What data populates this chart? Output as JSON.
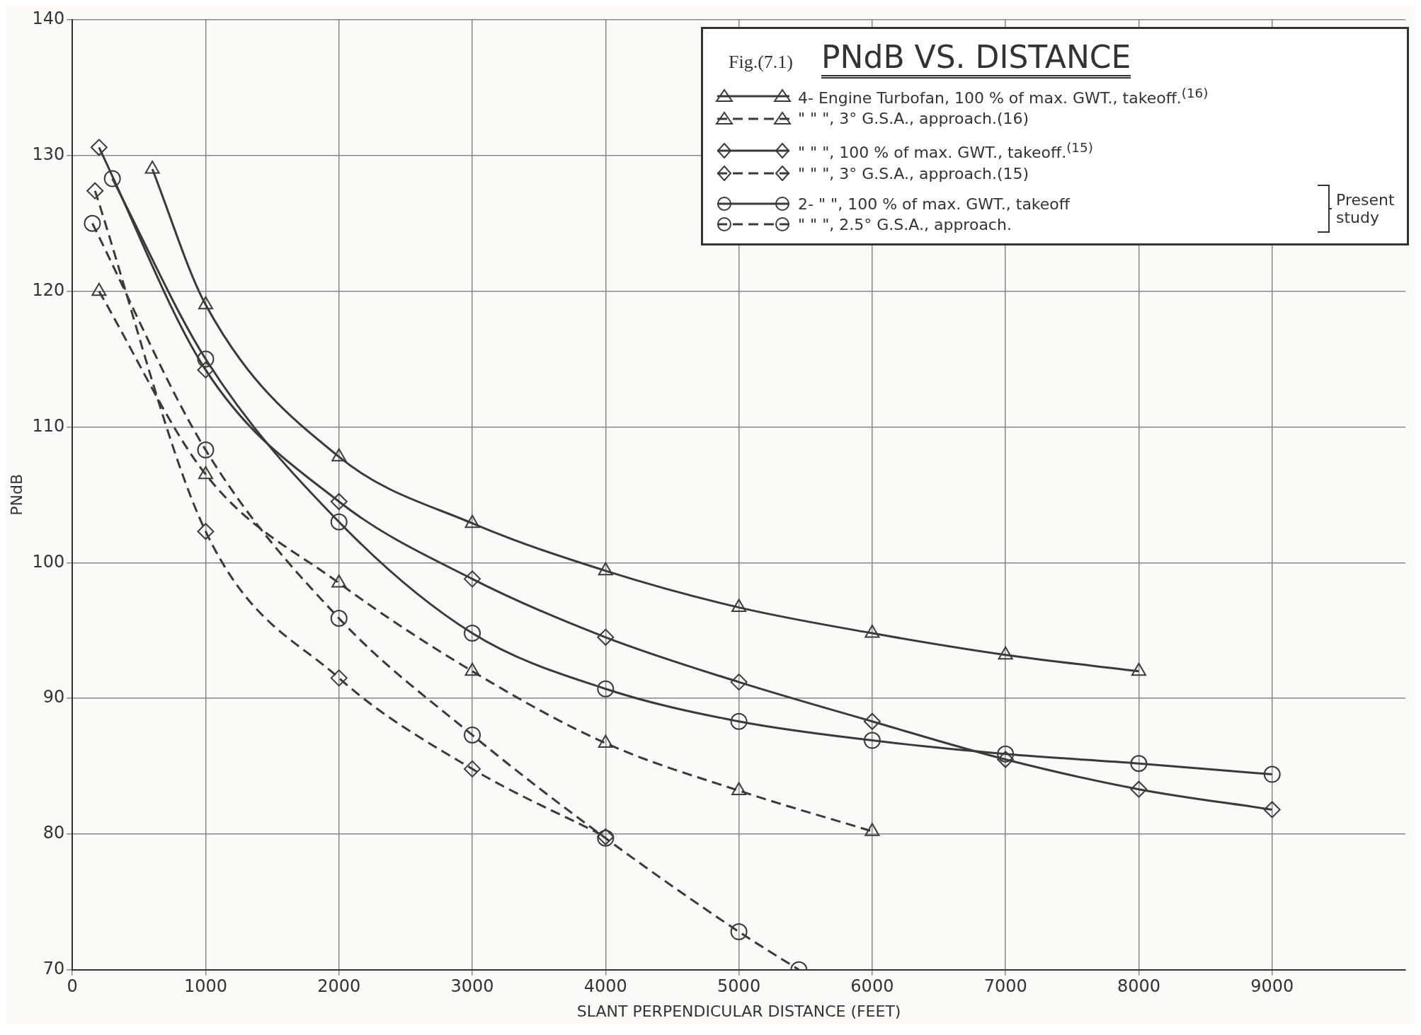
{
  "chart_data": {
    "type": "line",
    "title": "PNdB VS. DISTANCE",
    "subtitle": "Fig.(7.1)",
    "xlabel": "SLANT PERPENDICULAR DISTANCE (FEET)",
    "ylabel": "PNdB",
    "xlim": [
      0,
      10000
    ],
    "xticks": [
      0,
      1000,
      2000,
      3000,
      4000,
      5000,
      6000,
      7000,
      8000,
      9000
    ],
    "ylim": [
      70,
      140
    ],
    "yticks": [
      70,
      80,
      90,
      100,
      110,
      120,
      130,
      140
    ],
    "grid": true,
    "legend": "top right",
    "annotations": [
      "Present study"
    ],
    "series": [
      {
        "name": "4- Engine Turbofan, 100 % of max. GWT., takeoff.$^{(16)}$",
        "color": "#3a3a3a",
        "marker": "triangle",
        "line_style": "solid",
        "x": [
          600,
          1000,
          2000,
          3000,
          4000,
          5000,
          6000,
          7000,
          8000
        ],
        "values": [
          129,
          119,
          107.8,
          102.9,
          99.4,
          96.7,
          94.8,
          93.2,
          92
        ]
      },
      {
        "name": "\" \" \", 3° G.S.A., approach.(16)",
        "color": "#3a3a3a",
        "marker": "triangle",
        "line_style": "dashed",
        "x": [
          200,
          1000,
          2000,
          3000,
          4000,
          5000,
          6000
        ],
        "values": [
          120,
          106.5,
          98.5,
          92,
          86.7,
          83.2,
          80.2
        ]
      },
      {
        "name": "\" \" \", 100 % of max. GWT., takeoff.$^{(15)}$",
        "color": "#3a3a3a",
        "marker": "diamond",
        "line_style": "solid",
        "x": [
          200,
          1000,
          2000,
          3000,
          4000,
          5000,
          6000,
          7000,
          8000,
          9000
        ],
        "values": [
          130.6,
          114.2,
          104.5,
          98.8,
          94.5,
          91.2,
          88.3,
          85.5,
          83.3,
          81.8
        ]
      },
      {
        "name": "\" \" \", 3° G.S.A., approach.(15)",
        "color": "#3a3a3a",
        "marker": "diamond",
        "line_style": "dashed",
        "x": [
          170,
          1000,
          2000,
          3000,
          4000
        ],
        "values": [
          127.4,
          102.3,
          91.5,
          84.8,
          79.8
        ]
      },
      {
        "name": "2- \" \", 100 % of max. GWT., takeoff",
        "color": "#3a3a3a",
        "marker": "circle",
        "line_style": "solid",
        "x": [
          300,
          1000,
          2000,
          3000,
          4000,
          5000,
          6000,
          7000,
          8000,
          9000
        ],
        "values": [
          128.3,
          115,
          103,
          94.8,
          90.7,
          88.3,
          86.9,
          85.9,
          85.2,
          84.4
        ]
      },
      {
        "name": "\" \" \", 2.5° G.S.A., approach.",
        "color": "#3a3a3a",
        "marker": "circle",
        "line_style": "dashed",
        "x": [
          150,
          1000,
          2000,
          3000,
          4000,
          5000,
          5450
        ],
        "values": [
          125,
          108.3,
          95.9,
          87.3,
          79.7,
          72.8,
          70
        ]
      }
    ]
  }
}
